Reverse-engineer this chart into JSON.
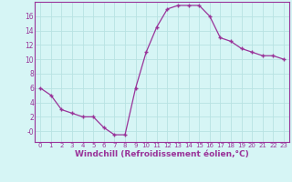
{
  "x": [
    0,
    1,
    2,
    3,
    4,
    5,
    6,
    7,
    8,
    9,
    10,
    11,
    12,
    13,
    14,
    15,
    16,
    17,
    18,
    19,
    20,
    21,
    22,
    23
  ],
  "y": [
    6,
    5,
    3,
    2.5,
    2,
    2,
    0.5,
    -0.5,
    -0.5,
    6,
    11,
    14.5,
    17,
    17.5,
    17.5,
    17.5,
    16,
    13,
    12.5,
    11.5,
    11,
    10.5,
    10.5,
    10
  ],
  "line_color": "#993399",
  "marker": "+",
  "bg_color": "#d6f5f5",
  "grid_color": "#b8e2e2",
  "xlabel": "Windchill (Refroidissement éolien,°C)",
  "xlabel_fontsize": 6.5,
  "yticks": [
    0,
    2,
    4,
    6,
    8,
    10,
    12,
    14,
    16
  ],
  "ytick_labels": [
    "-0",
    "2",
    "4",
    "6",
    "8",
    "10",
    "12",
    "14",
    "16"
  ],
  "xticks": [
    0,
    1,
    2,
    3,
    4,
    5,
    6,
    7,
    8,
    9,
    10,
    11,
    12,
    13,
    14,
    15,
    16,
    17,
    18,
    19,
    20,
    21,
    22,
    23
  ],
  "ylim": [
    -1.5,
    18.0
  ],
  "xlim": [
    -0.5,
    23.5
  ]
}
